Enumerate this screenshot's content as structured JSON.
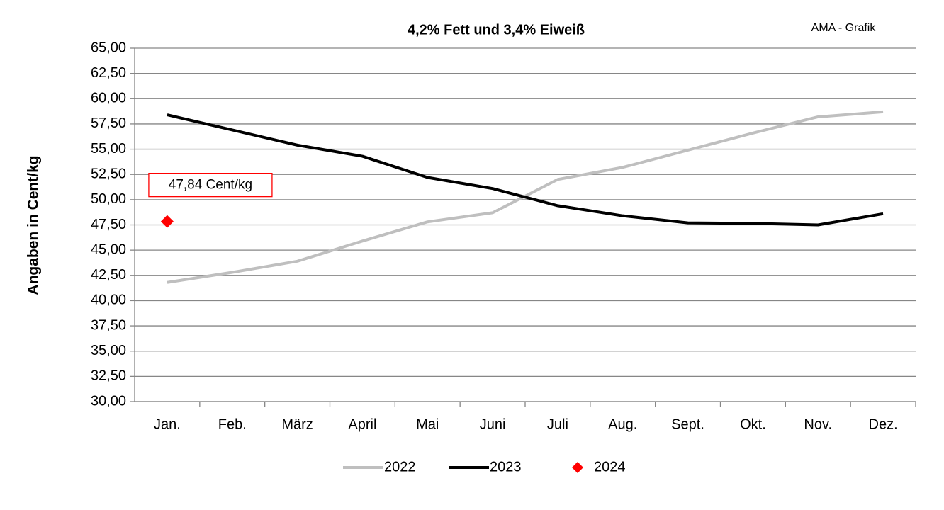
{
  "chart_data": {
    "type": "line",
    "title": "4,2% Fett und 3,4% Eiweiß",
    "subtitle": "AMA - Grafik",
    "y_label": "Angaben in Cent/kg",
    "categories": [
      "Jan.",
      "Feb.",
      "März",
      "April",
      "Mai",
      "Juni",
      "Juli",
      "Aug.",
      "Sept.",
      "Okt.",
      "Nov.",
      "Dez."
    ],
    "series": [
      {
        "name": "2022",
        "color": "#bfbfbf",
        "mode": "line",
        "values": [
          41.8,
          42.8,
          43.9,
          45.9,
          47.8,
          48.7,
          52.0,
          53.2,
          54.9,
          56.6,
          58.2,
          58.7
        ]
      },
      {
        "name": "2023",
        "color": "#000000",
        "mode": "line",
        "values": [
          58.4,
          56.9,
          55.4,
          54.3,
          52.2,
          51.1,
          49.4,
          48.4,
          47.7,
          47.65,
          47.5,
          48.6
        ]
      },
      {
        "name": "2024",
        "color": "#ff0000",
        "mode": "marker",
        "values": [
          47.84,
          null,
          null,
          null,
          null,
          null,
          null,
          null,
          null,
          null,
          null,
          null
        ],
        "value_labels": [
          "47,84 Cent/kg",
          null,
          null,
          null,
          null,
          null,
          null,
          null,
          null,
          null,
          null,
          null
        ]
      }
    ],
    "ylim": [
      30,
      65
    ],
    "yticks": [
      {
        "value": 30,
        "label": "30,00"
      },
      {
        "value": 32.5,
        "label": "32,50"
      },
      {
        "value": 35,
        "label": "35,00"
      },
      {
        "value": 37.5,
        "label": "37,50"
      },
      {
        "value": 40,
        "label": "40,00"
      },
      {
        "value": 42.5,
        "label": "42,50"
      },
      {
        "value": 45,
        "label": "45,00"
      },
      {
        "value": 47.5,
        "label": "47,50"
      },
      {
        "value": 50,
        "label": "50,00"
      },
      {
        "value": 52.5,
        "label": "52,50"
      },
      {
        "value": 55,
        "label": "55,00"
      },
      {
        "value": 57.5,
        "label": "57,50"
      },
      {
        "value": 60,
        "label": "60,00"
      },
      {
        "value": 62.5,
        "label": "62,50"
      },
      {
        "value": 65,
        "label": "65,00"
      }
    ],
    "grid": true,
    "legend": "bottom"
  }
}
